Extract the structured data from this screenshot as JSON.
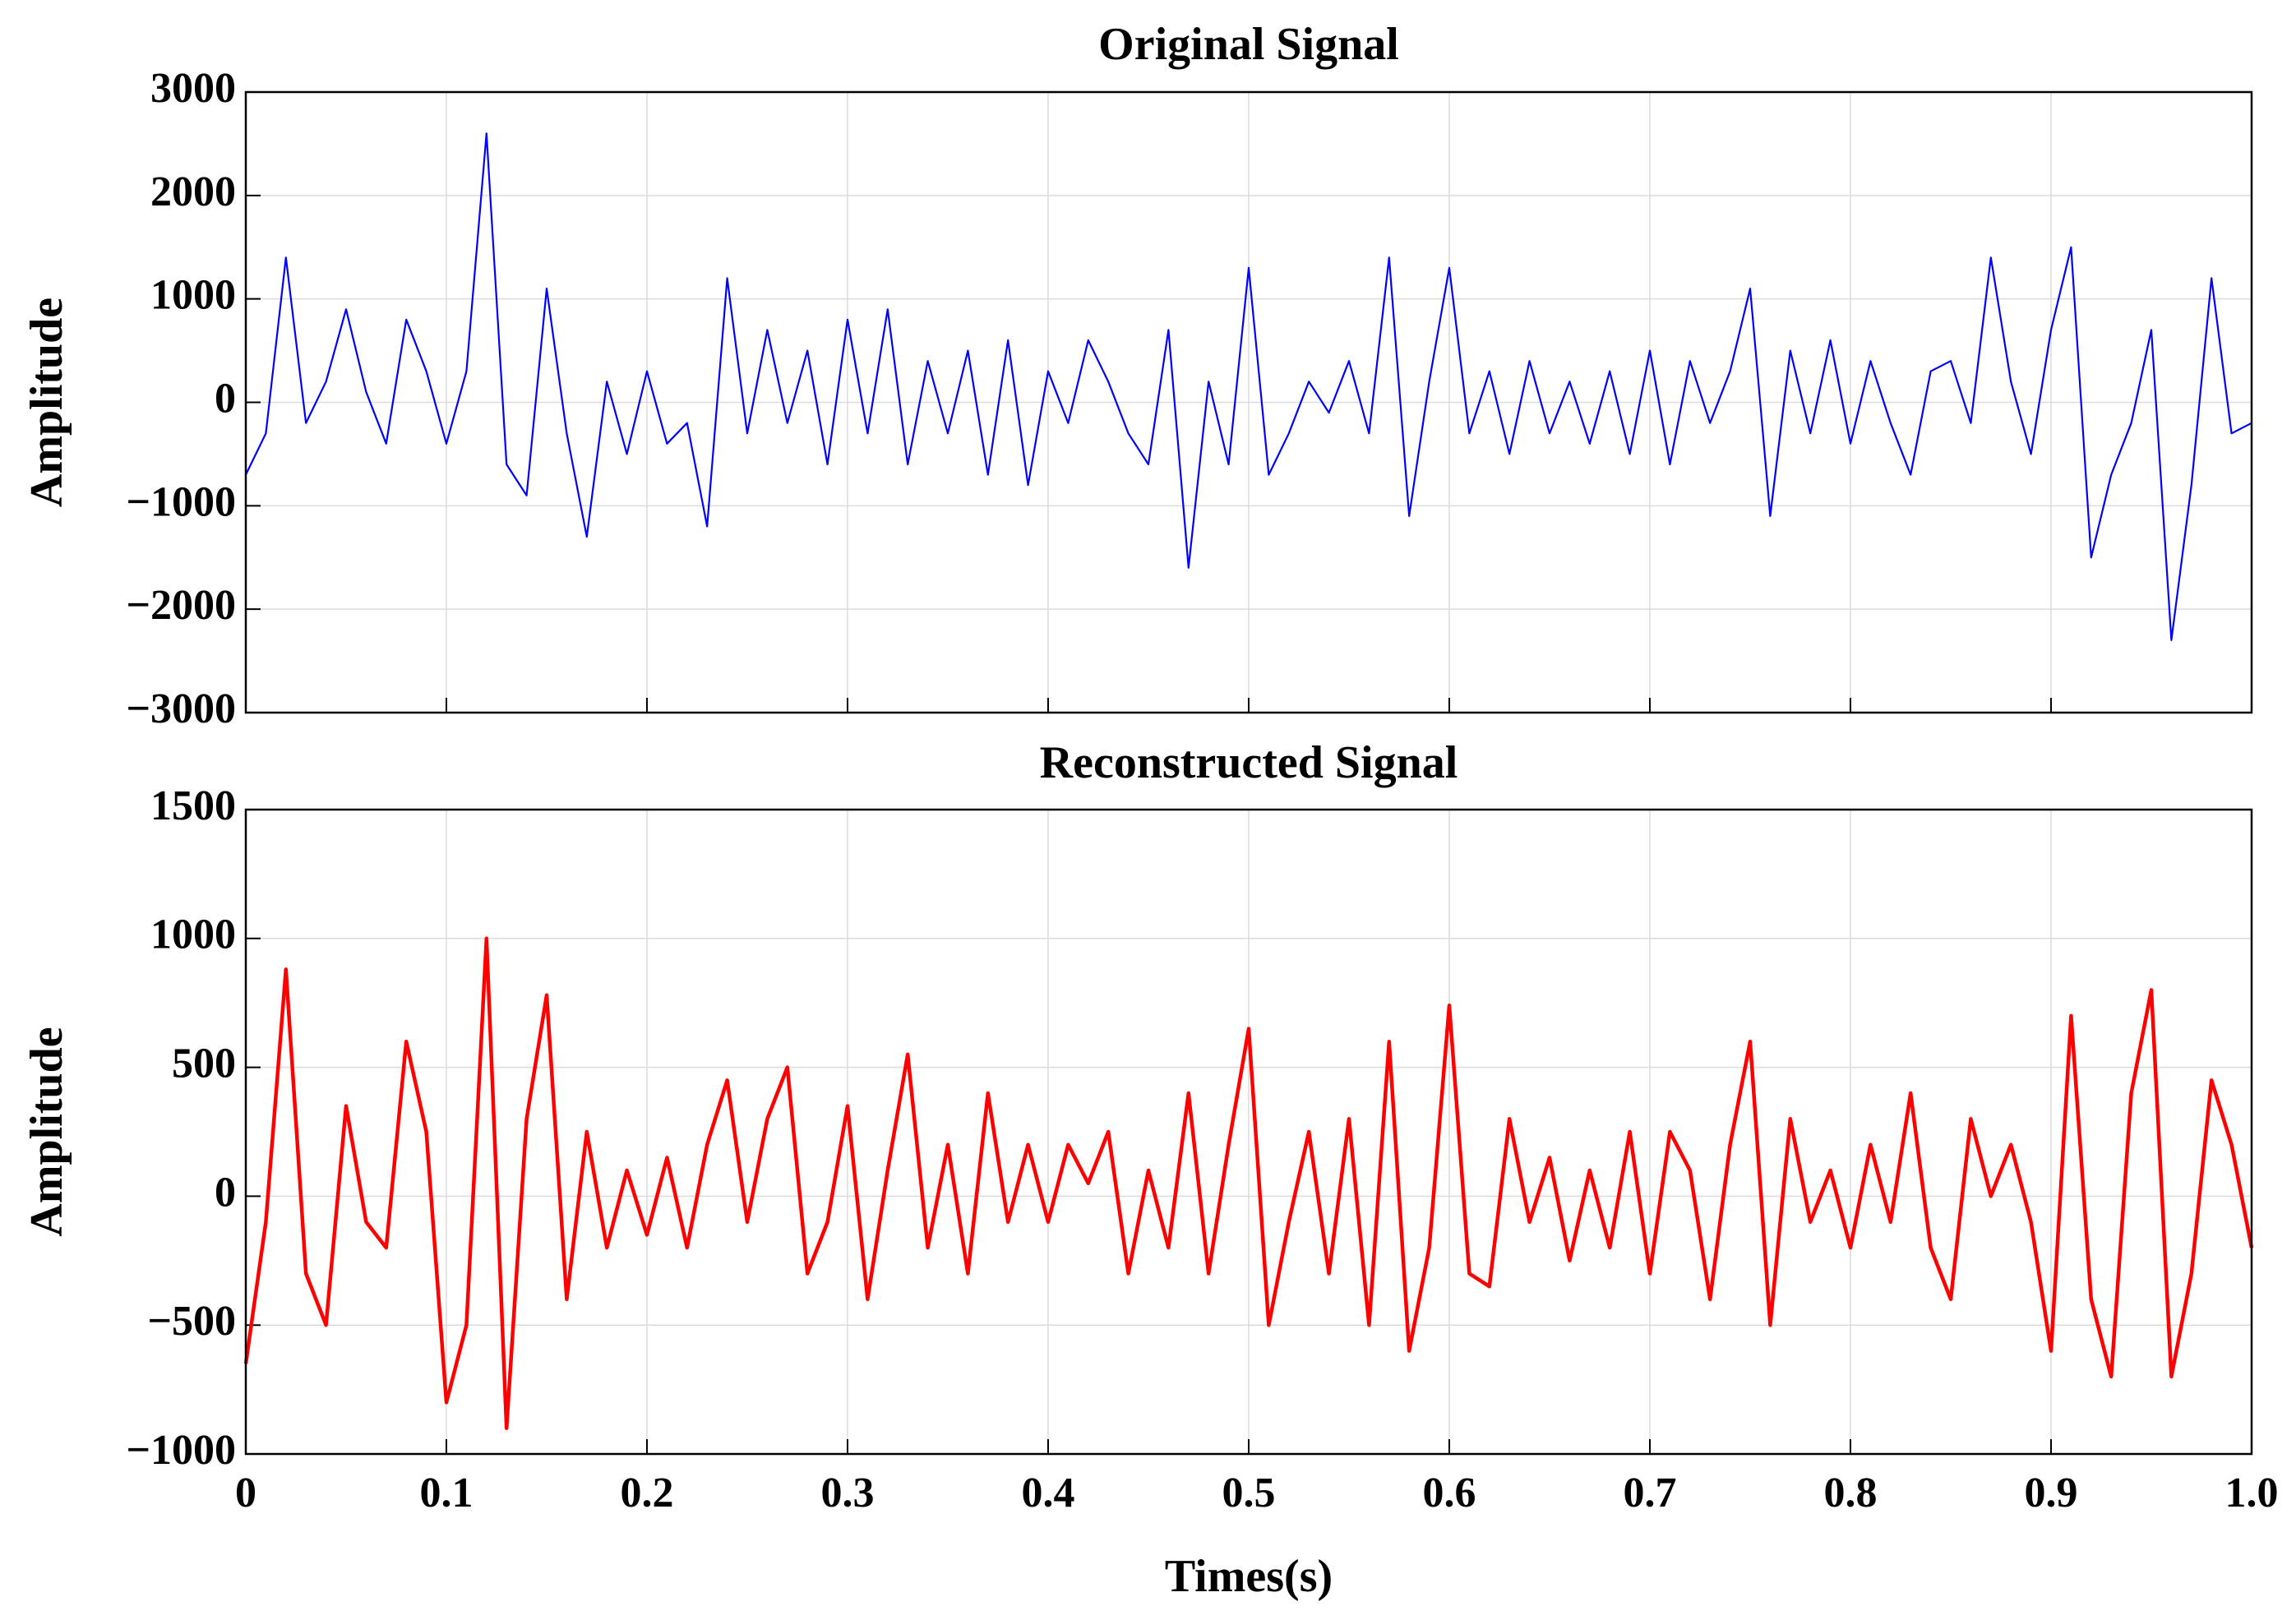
{
  "chart_data": [
    {
      "type": "line",
      "title": "Original Signal",
      "ylabel": "Amplitude",
      "x": [
        0,
        0.01,
        0.02,
        0.03,
        0.04,
        0.05,
        0.06,
        0.07,
        0.08,
        0.09,
        0.1,
        0.11,
        0.12,
        0.13,
        0.14,
        0.15,
        0.16,
        0.17,
        0.18,
        0.19,
        0.2,
        0.21,
        0.22,
        0.23,
        0.24,
        0.25,
        0.26,
        0.27,
        0.28,
        0.29,
        0.3,
        0.31,
        0.32,
        0.33,
        0.34,
        0.35,
        0.36,
        0.37,
        0.38,
        0.39,
        0.4,
        0.41,
        0.42,
        0.43,
        0.44,
        0.45,
        0.46,
        0.47,
        0.48,
        0.49,
        0.5,
        0.51,
        0.52,
        0.53,
        0.54,
        0.55,
        0.56,
        0.57,
        0.58,
        0.59,
        0.6,
        0.61,
        0.62,
        0.63,
        0.64,
        0.65,
        0.66,
        0.67,
        0.68,
        0.69,
        0.7,
        0.71,
        0.72,
        0.73,
        0.74,
        0.75,
        0.76,
        0.77,
        0.78,
        0.79,
        0.8,
        0.81,
        0.82,
        0.83,
        0.84,
        0.85,
        0.86,
        0.87,
        0.88,
        0.89,
        0.9,
        0.91,
        0.92,
        0.93,
        0.94,
        0.95,
        0.96,
        0.97,
        0.98,
        0.99,
        1
      ],
      "series": [
        {
          "name": "Original",
          "color": "#0000ff",
          "values": [
            -700,
            -300,
            1400,
            -200,
            200,
            900,
            100,
            -400,
            800,
            300,
            -400,
            300,
            2600,
            -600,
            -900,
            1100,
            -300,
            -1300,
            200,
            -500,
            300,
            -400,
            -200,
            -1200,
            1200,
            -300,
            700,
            -200,
            500,
            -600,
            800,
            -300,
            900,
            -600,
            400,
            -300,
            500,
            -700,
            600,
            -800,
            300,
            -200,
            600,
            200,
            -300,
            -600,
            700,
            -1600,
            200,
            -600,
            1300,
            -700,
            -300,
            200,
            -100,
            400,
            -300,
            1400,
            -1100,
            200,
            1300,
            -300,
            300,
            -500,
            400,
            -300,
            200,
            -400,
            300,
            -500,
            500,
            -600,
            400,
            -200,
            300,
            1100,
            -1100,
            500,
            -300,
            600,
            -400,
            400,
            -200,
            -700,
            300,
            400,
            -200,
            1400,
            200,
            -500,
            700,
            1500,
            -1500,
            -700,
            -200,
            700,
            -2300,
            -800,
            1200,
            -300,
            -200
          ]
        }
      ],
      "xlim": [
        0,
        1
      ],
      "xticks": [
        0,
        0.1,
        0.2,
        0.3,
        0.4,
        0.5,
        0.6,
        0.7,
        0.8,
        0.9,
        1
      ],
      "ylim": [
        -3000,
        3000
      ],
      "yticks": [
        {
          "value": -3000,
          "label": "−3000"
        },
        {
          "value": -2000,
          "label": "−2000"
        },
        {
          "value": -1000,
          "label": "−1000"
        },
        0,
        1000,
        2000,
        3000
      ],
      "grid": true
    },
    {
      "type": "line",
      "title": "Reconstructed Signal",
      "ylabel": "Amplitude",
      "xlabel": "Times(s)",
      "x": [
        0,
        0.01,
        0.02,
        0.03,
        0.04,
        0.05,
        0.06,
        0.07,
        0.08,
        0.09,
        0.1,
        0.11,
        0.12,
        0.13,
        0.14,
        0.15,
        0.16,
        0.17,
        0.18,
        0.19,
        0.2,
        0.21,
        0.22,
        0.23,
        0.24,
        0.25,
        0.26,
        0.27,
        0.28,
        0.29,
        0.3,
        0.31,
        0.32,
        0.33,
        0.34,
        0.35,
        0.36,
        0.37,
        0.38,
        0.39,
        0.4,
        0.41,
        0.42,
        0.43,
        0.44,
        0.45,
        0.46,
        0.47,
        0.48,
        0.49,
        0.5,
        0.51,
        0.52,
        0.53,
        0.54,
        0.55,
        0.56,
        0.57,
        0.58,
        0.59,
        0.6,
        0.61,
        0.62,
        0.63,
        0.64,
        0.65,
        0.66,
        0.67,
        0.68,
        0.69,
        0.7,
        0.71,
        0.72,
        0.73,
        0.74,
        0.75,
        0.76,
        0.77,
        0.78,
        0.79,
        0.8,
        0.81,
        0.82,
        0.83,
        0.84,
        0.85,
        0.86,
        0.87,
        0.88,
        0.89,
        0.9,
        0.91,
        0.92,
        0.93,
        0.94,
        0.95,
        0.96,
        0.97,
        0.98,
        0.99,
        1
      ],
      "series": [
        {
          "name": "Reconstructed",
          "color": "#ff0000",
          "values": [
            -650,
            -100,
            880,
            -300,
            -500,
            350,
            -100,
            -200,
            600,
            250,
            -800,
            -500,
            1000,
            -900,
            300,
            780,
            -400,
            250,
            -200,
            100,
            -150,
            150,
            -200,
            200,
            450,
            -100,
            300,
            500,
            -300,
            -100,
            350,
            -400,
            100,
            550,
            -200,
            200,
            -300,
            400,
            -100,
            200,
            -100,
            200,
            50,
            250,
            -300,
            100,
            -200,
            400,
            -300,
            200,
            650,
            -500,
            -100,
            250,
            -300,
            300,
            -500,
            600,
            -600,
            -200,
            740,
            -300,
            -350,
            300,
            -100,
            150,
            -250,
            100,
            -200,
            250,
            -300,
            250,
            100,
            -400,
            200,
            600,
            -500,
            300,
            -100,
            100,
            -200,
            200,
            -100,
            400,
            -200,
            -400,
            300,
            0,
            200,
            -100,
            -600,
            700,
            -400,
            -700,
            400,
            800,
            -700,
            -300,
            450,
            200,
            -200
          ]
        }
      ],
      "xlim": [
        0,
        1
      ],
      "xticks": [
        0,
        0.1,
        0.2,
        0.3,
        0.4,
        0.5,
        0.6,
        0.7,
        0.8,
        0.9,
        {
          "value": 1,
          "label": "1.0"
        }
      ],
      "ylim": [
        -1000,
        1500
      ],
      "yticks": [
        {
          "value": -1000,
          "label": "−1000"
        },
        {
          "value": -500,
          "label": "−500"
        },
        0,
        500,
        1000,
        1500
      ],
      "grid": true
    }
  ]
}
